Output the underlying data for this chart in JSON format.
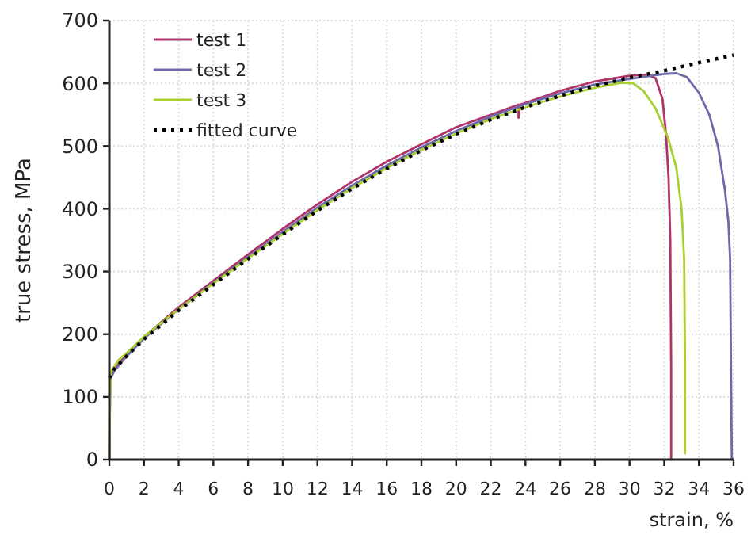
{
  "chart_data": {
    "type": "line",
    "xlabel": "strain, %",
    "ylabel": "true stress, MPa",
    "xlim": [
      0,
      36
    ],
    "ylim": [
      0,
      700
    ],
    "xticks": [
      0,
      2,
      4,
      6,
      8,
      10,
      12,
      14,
      16,
      18,
      20,
      22,
      24,
      26,
      28,
      30,
      32,
      34,
      36
    ],
    "yticks": [
      0,
      100,
      200,
      300,
      400,
      500,
      600,
      700
    ],
    "grid": true,
    "legend": "top left",
    "marker": "none",
    "series": [
      {
        "name": "test 1",
        "color": "#b0336a",
        "line_style": "solid",
        "x": [
          0,
          0.05,
          0.3,
          1,
          2,
          4,
          6,
          8,
          10,
          12,
          14,
          16,
          18,
          20,
          22,
          23.6,
          23.6,
          23.7,
          26,
          28,
          30,
          31,
          31.5,
          31.9,
          32.1,
          32.25,
          32.35,
          32.4,
          32.4
        ],
        "values": [
          0,
          130,
          145,
          168,
          195,
          243,
          285,
          327,
          368,
          407,
          443,
          475,
          503,
          530,
          550,
          566,
          545,
          566,
          588,
          603,
          612,
          614,
          608,
          575,
          520,
          450,
          350,
          150,
          0
        ]
      },
      {
        "name": "test 2",
        "color": "#6c6aa8",
        "line_style": "solid",
        "x": [
          0,
          0.05,
          0.3,
          1,
          2,
          4,
          6,
          8,
          10,
          12,
          14,
          16,
          18,
          20,
          22,
          24,
          26,
          28,
          30,
          31,
          32,
          32.7,
          33.3,
          34,
          34.6,
          35.1,
          35.5,
          35.7,
          35.8,
          35.85,
          35.9
        ],
        "values": [
          0,
          128,
          142,
          165,
          193,
          240,
          282,
          323,
          363,
          402,
          437,
          469,
          498,
          524,
          547,
          567,
          584,
          598,
          607,
          611,
          615,
          616,
          610,
          585,
          550,
          500,
          430,
          380,
          320,
          150,
          0
        ]
      },
      {
        "name": "test 3",
        "color": "#a8d030",
        "line_style": "solid",
        "x": [
          0,
          0.03,
          0.1,
          0.5,
          1,
          2,
          4,
          6,
          8,
          10,
          12,
          14,
          16,
          18,
          20,
          22,
          24,
          26,
          28,
          29.5,
          30.2,
          30.8,
          31.5,
          32.2,
          32.7,
          33.0,
          33.15,
          33.2,
          33.2
        ],
        "values": [
          0,
          100,
          140,
          158,
          170,
          196,
          240,
          281,
          321,
          360,
          398,
          433,
          465,
          494,
          520,
          543,
          562,
          579,
          593,
          601,
          600,
          588,
          560,
          515,
          465,
          400,
          320,
          150,
          10
        ]
      },
      {
        "name": "fitted curve",
        "color": "#000000",
        "line_style": "dotted",
        "x": [
          0,
          0.3,
          1,
          2,
          4,
          6,
          8,
          10,
          12,
          14,
          16,
          18,
          20,
          22,
          24,
          26,
          28,
          30,
          32,
          34,
          36
        ],
        "values": [
          130,
          145,
          165,
          192,
          238,
          279,
          320,
          359,
          397,
          432,
          464,
          493,
          519,
          542,
          562,
          580,
          596,
          609,
          620,
          633,
          645
        ]
      }
    ]
  }
}
